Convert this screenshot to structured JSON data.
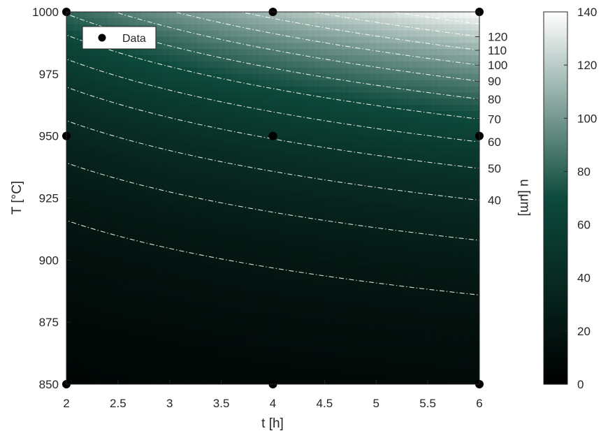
{
  "chart_data": {
    "type": "heatmap",
    "title": "",
    "xlabel": "t [h]",
    "ylabel": "T [°C]",
    "xlim": [
      2,
      6
    ],
    "ylim": [
      850,
      1000
    ],
    "x_ticks": [
      "2",
      "2.5",
      "3",
      "3.5",
      "4",
      "4.5",
      "5",
      "5.5",
      "6"
    ],
    "y_ticks": [
      "850",
      "875",
      "900",
      "925",
      "950",
      "975",
      "1000"
    ],
    "colorbar": {
      "range": [
        0,
        140
      ],
      "ticks": [
        "0",
        "20",
        "40",
        "60",
        "80",
        "100",
        "120",
        "140"
      ],
      "colormap": [
        "#000000",
        "#0d4a3c",
        "#ffffff"
      ]
    },
    "contour_labels": {
      "label": "u [μm]",
      "levels": [
        40,
        50,
        60,
        70,
        80,
        90,
        100,
        110,
        120
      ],
      "tick_labels": [
        "40",
        "50",
        "60",
        "70",
        "80",
        "90",
        "100",
        "110",
        "120"
      ],
      "style": "dash-dot white"
    },
    "data_points": {
      "label": "Data",
      "x": [
        2,
        2,
        2,
        4,
        4,
        4,
        6,
        6,
        6
      ],
      "y": [
        850,
        950,
        1000,
        850,
        950,
        1000,
        850,
        950,
        1000
      ]
    },
    "legend_position": "top-left"
  }
}
